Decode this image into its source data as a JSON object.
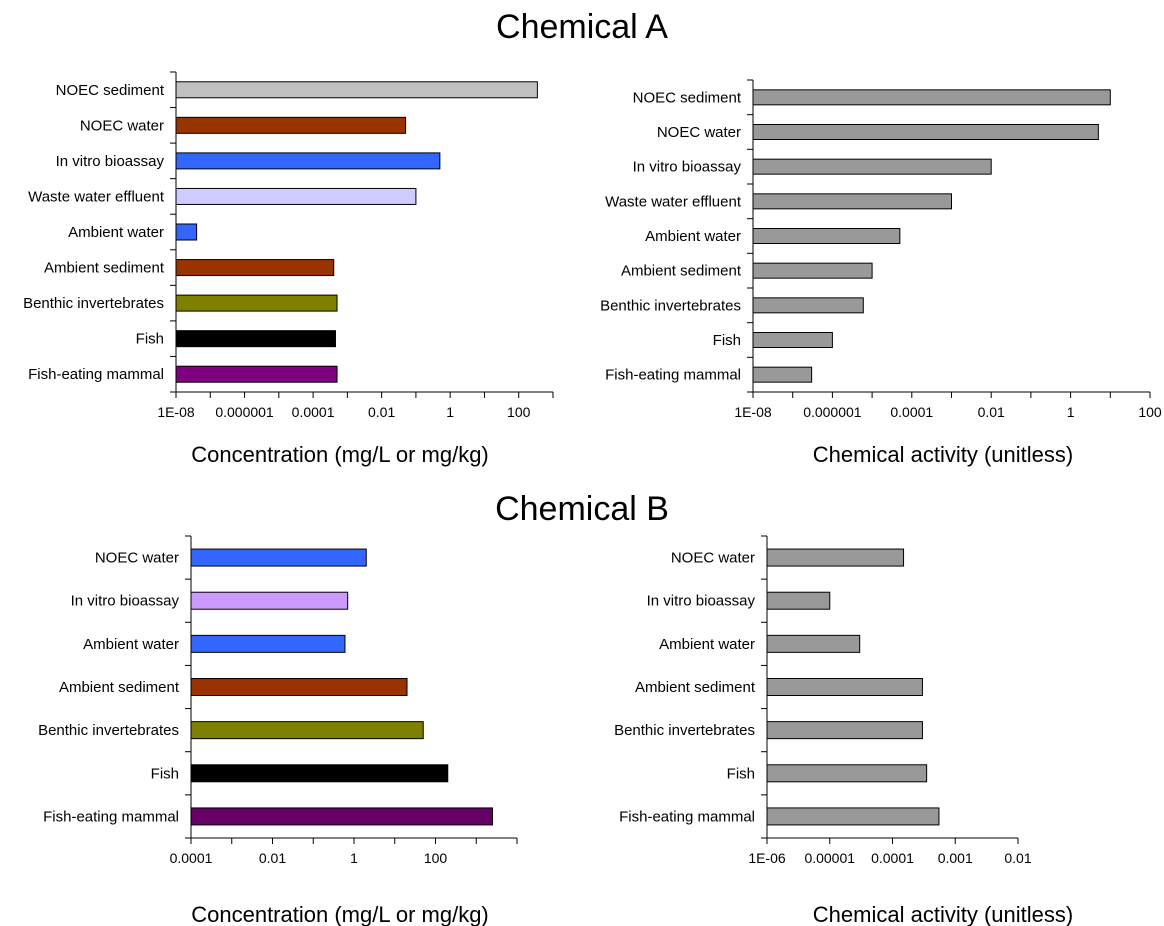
{
  "titles": {
    "chemical_a": "Chemical A",
    "chemical_b": "Chemical B"
  },
  "chart_data": [
    {
      "id": "a_conc",
      "type": "bar",
      "orientation": "horizontal",
      "section": "Chemical A",
      "xlabel": "Concentration (mg/L or mg/kg)",
      "xscale": "log",
      "xlim": [
        1e-08,
        1000
      ],
      "ticks": [
        "1E-08",
        "0.000001",
        "0.0001",
        "0.01",
        "1",
        "100"
      ],
      "categories": [
        "NOEC sediment",
        "NOEC water",
        "In vitro bioassay",
        "Waste water effluent",
        "Ambient water",
        "Ambient sediment",
        "Benthic invertebrates",
        "Fish",
        "Fish-eating mammal"
      ],
      "values": [
        350,
        0.05,
        0.5,
        0.1,
        4e-08,
        0.0004,
        0.0005,
        0.00045,
        0.0005
      ],
      "colors": [
        "#c0c0c0",
        "#993300",
        "#3366ff",
        "#ccccff",
        "#3366ff",
        "#993300",
        "#808000",
        "#000000",
        "#800080"
      ]
    },
    {
      "id": "a_act",
      "type": "bar",
      "orientation": "horizontal",
      "section": "Chemical A",
      "xlabel": "Chemical activity (unitless)",
      "xscale": "log",
      "xlim": [
        1e-08,
        100
      ],
      "ticks": [
        "1E-08",
        "0.000001",
        "0.0001",
        "0.01",
        "1",
        "100"
      ],
      "categories": [
        "NOEC sediment",
        "NOEC water",
        "In vitro bioassay",
        "Waste water effluent",
        "Ambient water",
        "Ambient sediment",
        "Benthic invertebrates",
        "Fish",
        "Fish-eating mammal"
      ],
      "values": [
        10,
        5,
        0.01,
        0.001,
        5e-05,
        1e-05,
        6e-06,
        1e-06,
        3e-07
      ],
      "colors": [
        "#999999"
      ]
    },
    {
      "id": "b_conc",
      "type": "bar",
      "orientation": "horizontal",
      "section": "Chemical B",
      "xlabel": "Concentration (mg/L or mg/kg)",
      "xscale": "log",
      "xlim": [
        0.0001,
        10000
      ],
      "ticks": [
        "0.0001",
        "0.01",
        "1",
        "100"
      ],
      "categories": [
        "NOEC water",
        "In vitro bioassay",
        "Ambient water",
        "Ambient sediment",
        "Benthic invertebrates",
        "Fish",
        "Fish-eating mammal"
      ],
      "values": [
        2,
        0.7,
        0.6,
        20,
        50,
        200,
        2500
      ],
      "colors": [
        "#3366ff",
        "#cc99ff",
        "#3366ff",
        "#993300",
        "#808000",
        "#000000",
        "#660066"
      ]
    },
    {
      "id": "b_act",
      "type": "bar",
      "orientation": "horizontal",
      "section": "Chemical B",
      "xlabel": "Chemical activity (unitless)",
      "xscale": "log",
      "xlim": [
        1e-06,
        0.01
      ],
      "ticks": [
        "1E-06",
        "0.00001",
        "0.0001",
        "0.001",
        "0.01"
      ],
      "categories": [
        "NOEC water",
        "In vitro bioassay",
        "Ambient water",
        "Ambient sediment",
        "Benthic invertebrates",
        "Fish",
        "Fish-eating mammal"
      ],
      "values": [
        0.00015,
        1e-05,
        3e-05,
        0.0003,
        0.0003,
        0.00035,
        0.00055
      ],
      "colors": [
        "#999999"
      ]
    }
  ]
}
